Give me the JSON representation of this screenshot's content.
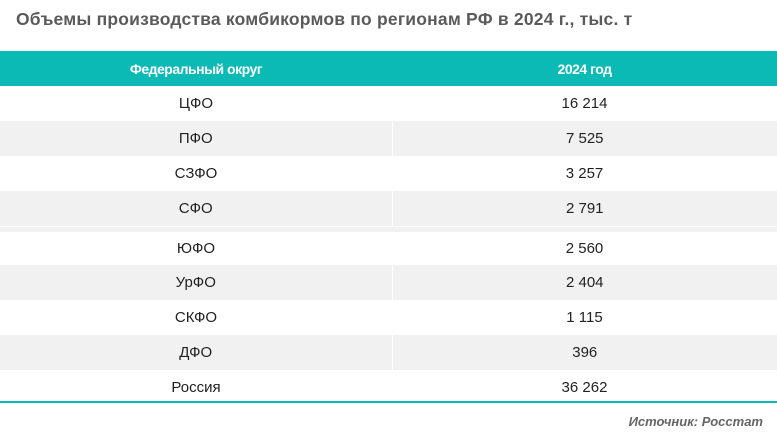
{
  "title": "Объемы производства комбикормов по регионам РФ в 2024 г., тыс. т",
  "source": "Источник: Росстат",
  "colors": {
    "header": "#0bbab5",
    "stripe": "#f1f1f1"
  },
  "chart_data": {
    "type": "table",
    "title": "Объемы производства комбикормов по регионам РФ в 2024 г., тыс. т",
    "columns": [
      "Федеральный округ",
      "2024 год"
    ],
    "rows": [
      {
        "region": "ЦФО",
        "value": "16 214"
      },
      {
        "region": "ПФО",
        "value": "7 525"
      },
      {
        "region": "СЗФО",
        "value": "3 257"
      },
      {
        "region": "СФО",
        "value": "2 791"
      },
      {
        "region": "ЮФО",
        "value": "2 560"
      },
      {
        "region": "УрФО",
        "value": "2 404"
      },
      {
        "region": "СКФО",
        "value": "1 115"
      },
      {
        "region": "ДФО",
        "value": "396"
      },
      {
        "region": "Россия",
        "value": "36 262"
      }
    ]
  }
}
